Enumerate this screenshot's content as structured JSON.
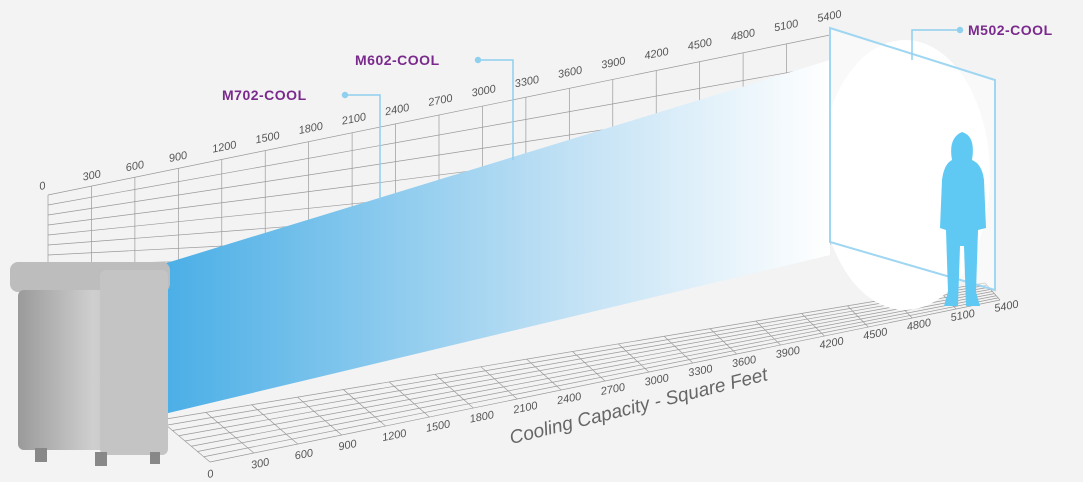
{
  "models": [
    {
      "label": "M702-COOL"
    },
    {
      "label": "M602-COOL"
    },
    {
      "label": "M502-COOL"
    }
  ],
  "scale": {
    "ticks": [
      0,
      300,
      600,
      900,
      1200,
      1500,
      1800,
      2100,
      2400,
      2700,
      3000,
      3300,
      3600,
      3900,
      4200,
      4500,
      4800,
      5100,
      5400
    ],
    "axis_label": "Cooling Capacity - Square Feet"
  }
}
